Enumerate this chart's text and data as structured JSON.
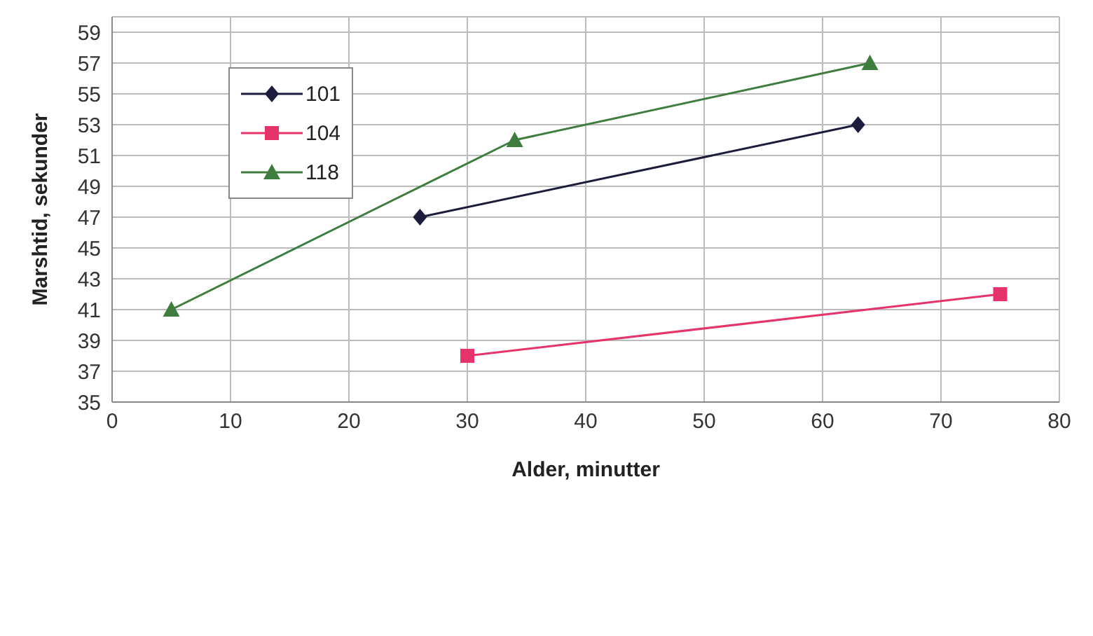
{
  "chart_data": {
    "type": "line",
    "xlabel": "Alder, minutter",
    "ylabel": "Marshtid, sekunder",
    "xlim": [
      0,
      80
    ],
    "xticks": [
      0,
      10,
      20,
      30,
      40,
      50,
      60,
      70,
      80
    ],
    "ylim": [
      35,
      60
    ],
    "yticks": [
      35,
      37,
      39,
      41,
      43,
      45,
      47,
      49,
      51,
      53,
      55,
      57,
      59
    ],
    "grid": true,
    "legend": "top left",
    "series": [
      {
        "name": "101",
        "color": "#1c1c3c",
        "marker": "diamond",
        "x": [
          26,
          63
        ],
        "values": [
          47,
          53
        ]
      },
      {
        "name": "104",
        "color": "#e6336a",
        "marker": "square",
        "x": [
          30,
          75
        ],
        "values": [
          38,
          42
        ]
      },
      {
        "name": "118",
        "color": "#3f7d3f",
        "marker": "triangle",
        "x": [
          5,
          34,
          64
        ],
        "values": [
          41,
          52,
          57
        ]
      }
    ]
  }
}
